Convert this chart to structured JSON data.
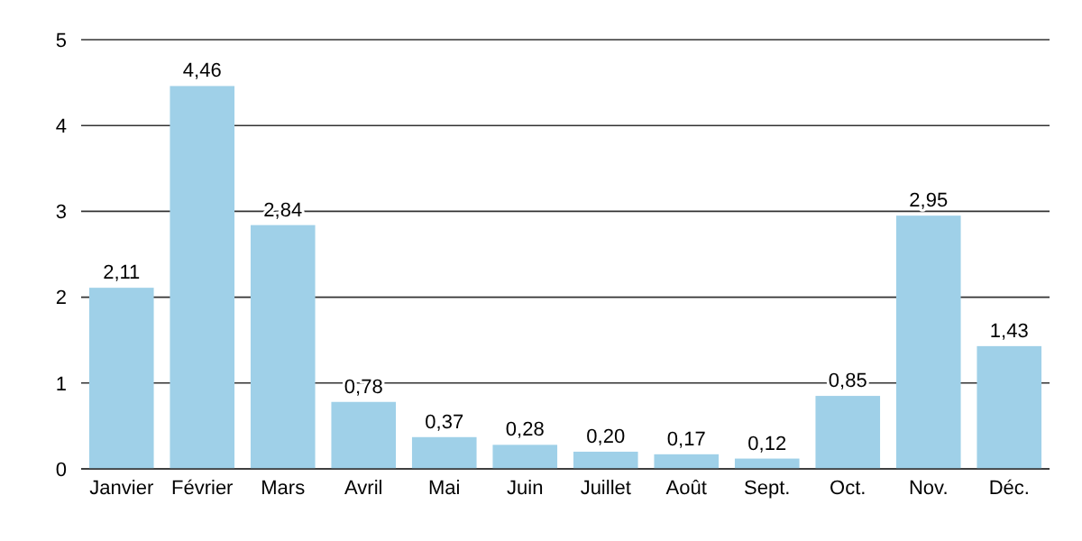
{
  "chart_data": {
    "type": "bar",
    "categories": [
      "Janvier",
      "Février",
      "Mars",
      "Avril",
      "Mai",
      "Juin",
      "Juillet",
      "Août",
      "Sept.",
      "Oct.",
      "Nov.",
      "Déc."
    ],
    "values": [
      2.11,
      4.46,
      2.84,
      0.78,
      0.37,
      0.28,
      0.2,
      0.17,
      0.12,
      0.85,
      2.95,
      1.43
    ],
    "value_labels": [
      "2,11",
      "4,46",
      "2,84",
      "0,78",
      "0,37",
      "0,28",
      "0,20",
      "0,17",
      "0,12",
      "0,85",
      "2,95",
      "1,43"
    ],
    "color": "#9fd0e8",
    "ylim": [
      0,
      5
    ],
    "yticks": [
      0,
      1,
      2,
      3,
      4,
      5
    ],
    "grid": "y"
  }
}
